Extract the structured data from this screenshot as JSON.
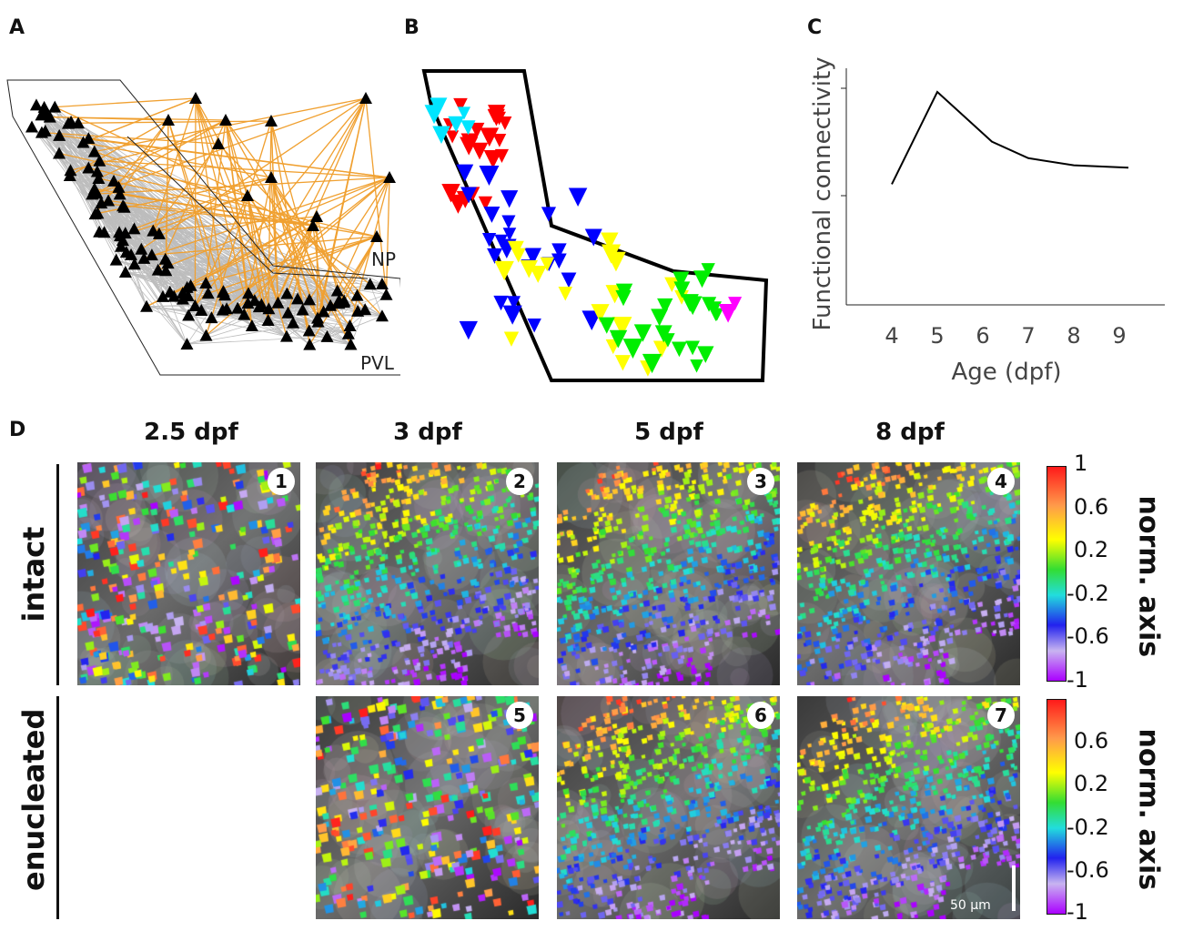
{
  "figure": {
    "panel_letters": {
      "a": "A",
      "b": "B",
      "c": "C",
      "d": "D"
    },
    "panel_a": {
      "region_np": "NP",
      "region_pvl": "PVL"
    },
    "panel_b": {
      "cluster_colors": [
        "#ff0000",
        "#00e5ff",
        "#0000ff",
        "#ffff00",
        "#00ee00",
        "#ff00ff"
      ]
    },
    "panel_d": {
      "columns": [
        "2.5 dpf",
        "3 dpf",
        "5 dpf",
        "8 dpf"
      ],
      "rows": [
        "intact",
        "enucleated"
      ],
      "panels": [
        {
          "number": "1",
          "row": "intact",
          "age": "2.5 dpf"
        },
        {
          "number": "2",
          "row": "intact",
          "age": "3 dpf"
        },
        {
          "number": "3",
          "row": "intact",
          "age": "5 dpf"
        },
        {
          "number": "4",
          "row": "intact",
          "age": "8 dpf"
        },
        {
          "number": "5",
          "row": "enucleated",
          "age": "3 dpf"
        },
        {
          "number": "6",
          "row": "enucleated",
          "age": "5 dpf"
        },
        {
          "number": "7",
          "row": "enucleated",
          "age": "8 dpf"
        }
      ],
      "colorbar_intact": {
        "title": "norm. axis",
        "ticks": [
          "1",
          "0.6",
          "0.2",
          "-0.2",
          "-0.6",
          "-1"
        ]
      },
      "colorbar_enucleated": {
        "title": "norm. axis",
        "ticks": [
          "0.6",
          "0.2",
          "-0.2",
          "-0.6",
          "-1"
        ]
      },
      "scale_bar": "50 µm"
    }
  },
  "chart_data": {
    "type": "line",
    "title": "",
    "xlabel": "Age (dpf)",
    "ylabel": "Functional connectivity",
    "x_ticks": [
      "4",
      "5",
      "6",
      "7",
      "8",
      "9"
    ],
    "x": [
      4,
      5,
      6.2,
      7,
      8,
      9.2
    ],
    "y": [
      0.11,
      0.5,
      0.29,
      0.22,
      0.19,
      0.18
    ],
    "xlim": [
      3,
      10
    ],
    "ylim": [
      -0.4,
      0.6
    ]
  }
}
